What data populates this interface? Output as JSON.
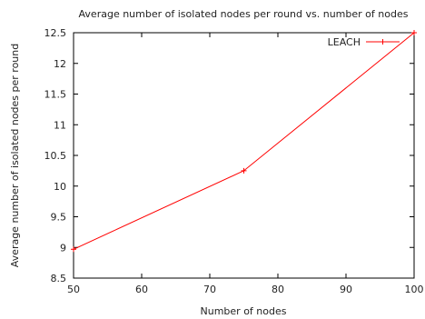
{
  "chart_data": {
    "type": "line",
    "title": "Average number of isolated nodes per round vs. number of nodes",
    "xlabel": "Number of nodes",
    "ylabel": "Average number of isolated nodes per round",
    "xlim": [
      50,
      100
    ],
    "ylim": [
      8.5,
      12.5
    ],
    "xticks": [
      50,
      60,
      70,
      80,
      90,
      100
    ],
    "yticks": [
      8.5,
      9,
      9.5,
      10,
      10.5,
      11,
      11.5,
      12,
      12.5
    ],
    "grid": false,
    "legend_position": "top-right",
    "series": [
      {
        "name": "LEACH",
        "color": "#ff0000",
        "marker": "plus",
        "x": [
          50,
          75,
          100
        ],
        "y": [
          8.97,
          10.25,
          12.5
        ]
      }
    ]
  }
}
